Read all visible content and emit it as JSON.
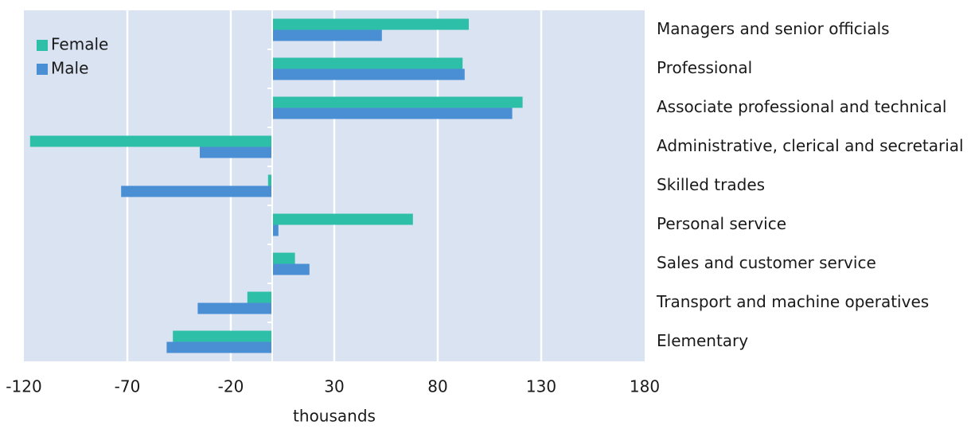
{
  "chart_data": {
    "type": "barh",
    "x_label": "thousands",
    "categories": [
      "Managers and senior officials",
      "Professional",
      "Associate professional and technical",
      "Administrative, clerical and secretarial",
      "Skilled trades",
      "Personal service",
      "Sales and customer service",
      "Transport and machine operatives",
      "Elementary"
    ],
    "series": [
      {
        "name": "Female",
        "color": "#2ebfa9",
        "values": [
          95,
          92,
          121,
          -117,
          -2,
          68,
          11,
          -12,
          -48
        ]
      },
      {
        "name": "Male",
        "color": "#4a8fd4",
        "values": [
          53,
          93,
          116,
          -35,
          -73,
          3,
          18,
          -36,
          -51
        ]
      }
    ],
    "xlim": [
      -120,
      180
    ],
    "xticks": [
      -120,
      -70,
      -20,
      30,
      80,
      130,
      180
    ],
    "grid": true,
    "legend": "upper left"
  }
}
